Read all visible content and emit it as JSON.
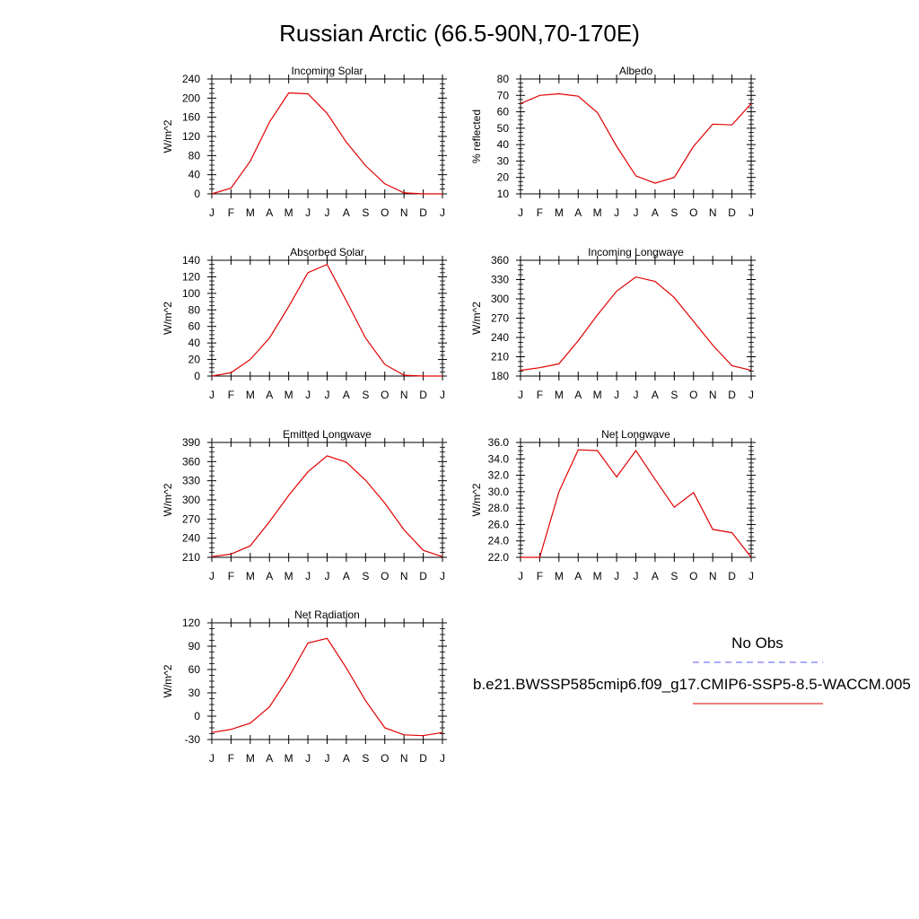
{
  "title": "Russian Arctic (66.5-90N,70-170E)",
  "legend": {
    "obs_label": "No Obs",
    "obs_color": "#5555ff",
    "model_label": "b.e21.BWSSP585cmip6.f09_g17.CMIP6-SSP5-8.5-WACCM.005",
    "model_color": "#e00000"
  },
  "chart_data": [
    {
      "type": "line",
      "title": "Incoming Solar",
      "ylabel": "W/m^2",
      "categories": [
        "J",
        "F",
        "M",
        "A",
        "M",
        "J",
        "J",
        "A",
        "S",
        "O",
        "N",
        "D",
        "J"
      ],
      "ylim": [
        0,
        240
      ],
      "yticks": [
        "0",
        "40",
        "80",
        "120",
        "160",
        "200",
        "240"
      ],
      "series": [
        {
          "values": [
            0,
            12,
            68,
            150,
            211,
            209,
            168,
            108,
            59,
            21,
            2,
            0,
            0
          ]
        }
      ]
    },
    {
      "type": "line",
      "title": "Albedo",
      "ylabel": "% reflected",
      "categories": [
        "J",
        "F",
        "M",
        "A",
        "M",
        "J",
        "J",
        "A",
        "S",
        "O",
        "N",
        "D",
        "J"
      ],
      "ylim": [
        10,
        80
      ],
      "yticks": [
        "10",
        "20",
        "30",
        "40",
        "50",
        "60",
        "70",
        "80"
      ],
      "series": [
        {
          "values": [
            65,
            70,
            71,
            69.5,
            59.5,
            39,
            21,
            16.5,
            20,
            39,
            52.5,
            52,
            65
          ]
        }
      ]
    },
    {
      "type": "line",
      "title": "Absorbed Solar",
      "ylabel": "W/m^2",
      "categories": [
        "J",
        "F",
        "M",
        "A",
        "M",
        "J",
        "J",
        "A",
        "S",
        "O",
        "N",
        "D",
        "J"
      ],
      "ylim": [
        0,
        140
      ],
      "yticks": [
        "0",
        "20",
        "40",
        "60",
        "80",
        "100",
        "120",
        "140"
      ],
      "series": [
        {
          "values": [
            0,
            4,
            20,
            46,
            84,
            125,
            135,
            91,
            46,
            14,
            1,
            0,
            0
          ]
        }
      ]
    },
    {
      "type": "line",
      "title": "Incoming Longwave",
      "ylabel": "W/m^2",
      "categories": [
        "J",
        "F",
        "M",
        "A",
        "M",
        "J",
        "J",
        "A",
        "S",
        "O",
        "N",
        "D",
        "J"
      ],
      "ylim": [
        180,
        360
      ],
      "yticks": [
        "180",
        "210",
        "240",
        "270",
        "300",
        "330",
        "360"
      ],
      "series": [
        {
          "values": [
            189,
            193,
            199,
            235,
            275,
            312,
            334,
            327,
            302,
            265,
            228,
            196,
            189
          ]
        }
      ]
    },
    {
      "type": "line",
      "title": "Emitted Longwave",
      "ylabel": "W/m^2",
      "categories": [
        "J",
        "F",
        "M",
        "A",
        "M",
        "J",
        "J",
        "A",
        "S",
        "O",
        "N",
        "D",
        "J"
      ],
      "ylim": [
        210,
        390
      ],
      "yticks": [
        "210",
        "240",
        "270",
        "300",
        "330",
        "360",
        "390"
      ],
      "series": [
        {
          "values": [
            211,
            215,
            228,
            266,
            307,
            344,
            369,
            359,
            331,
            295,
            253,
            221,
            211
          ]
        }
      ]
    },
    {
      "type": "line",
      "title": "Net Longwave",
      "ylabel": "W/m^2",
      "categories": [
        "J",
        "F",
        "M",
        "A",
        "M",
        "J",
        "J",
        "A",
        "S",
        "O",
        "N",
        "D",
        "J"
      ],
      "ylim": [
        22,
        36
      ],
      "yticks": [
        "22.0",
        "24.0",
        "26.0",
        "28.0",
        "30.0",
        "32.0",
        "34.0",
        "36.0"
      ],
      "series": [
        {
          "values": [
            22,
            22,
            30,
            35.1,
            35,
            31.8,
            35,
            31.5,
            28.1,
            29.9,
            25.4,
            25,
            22
          ]
        }
      ]
    },
    {
      "type": "line",
      "title": "Net Radiation",
      "ylabel": "W/m^2",
      "categories": [
        "J",
        "F",
        "M",
        "A",
        "M",
        "J",
        "J",
        "A",
        "S",
        "O",
        "N",
        "D",
        "J"
      ],
      "ylim": [
        -30,
        120
      ],
      "yticks": [
        "-30",
        "0",
        "30",
        "60",
        "90",
        "120"
      ],
      "series": [
        {
          "values": [
            -21,
            -17,
            -9,
            12,
            50,
            94,
            100,
            62,
            20,
            -15,
            -24,
            -25,
            -21
          ]
        }
      ]
    }
  ]
}
